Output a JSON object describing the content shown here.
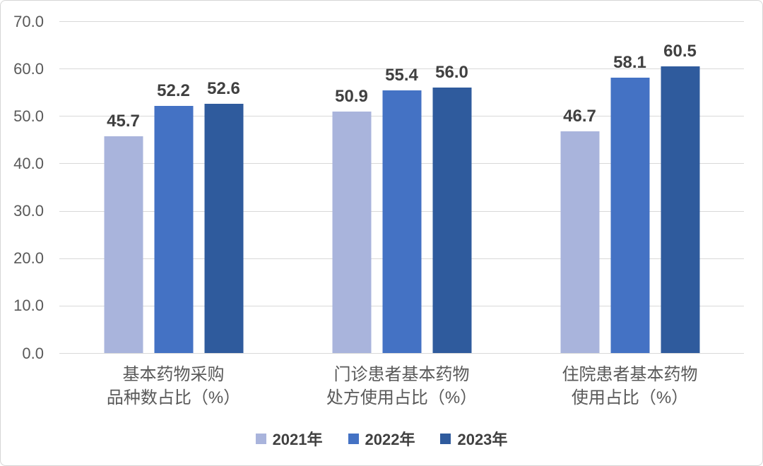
{
  "chart_data": {
    "type": "bar",
    "title": "",
    "xlabel": "",
    "ylabel": "",
    "categories": [
      [
        "基本药物采购",
        "品种数占比（%）"
      ],
      [
        "门诊患者基本药物",
        "处方使用占比（%）"
      ],
      [
        "住院患者基本药物",
        "使用占比（%）"
      ]
    ],
    "series": [
      {
        "name": "2021年",
        "color": "#a9b4dc",
        "values": [
          45.7,
          50.9,
          46.7
        ]
      },
      {
        "name": "2022年",
        "color": "#4472c4",
        "values": [
          52.2,
          55.4,
          58.1
        ]
      },
      {
        "name": "2023年",
        "color": "#2f5b9d",
        "values": [
          52.6,
          56.0,
          60.5
        ]
      }
    ],
    "ylim": [
      0,
      70
    ],
    "ytick_step": 10,
    "ytick_labels": [
      "0.0",
      "10.0",
      "20.0",
      "30.0",
      "40.0",
      "50.0",
      "60.0",
      "70.0"
    ],
    "grid": true,
    "legend_position": "bottom",
    "value_labels_shown": true,
    "value_label_decimals": 1
  },
  "colors": {
    "background": "#ffffff",
    "border": "#d6d6d6",
    "gridline": "#d9d9d9",
    "axis_text": "#595959",
    "value_label_text": "#404040",
    "legend_text": "#404040"
  }
}
